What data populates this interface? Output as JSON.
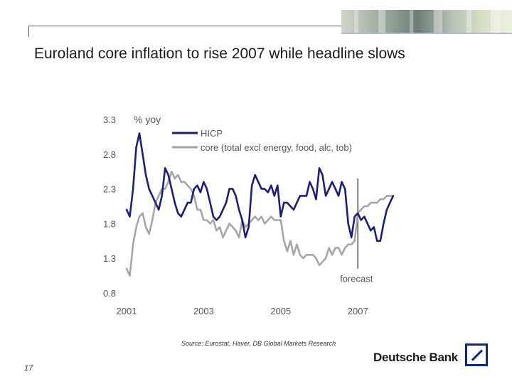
{
  "slide": {
    "title": "Euroland core inflation to rise 2007 while headline slows",
    "source": "Source: Eurostat, Haver, DB Global Markets Research",
    "page_number": "17",
    "brand": "Deutsche Bank",
    "logo": "deutsche-bank-slash-logo"
  },
  "chart_data": {
    "type": "line",
    "title": "",
    "xlabel": "",
    "ylabel": "% yoy",
    "xlim": [
      2001,
      2007.9
    ],
    "ylim": [
      0.8,
      3.3
    ],
    "x_ticks": [
      "2001",
      "2003",
      "2005",
      "2007"
    ],
    "y_ticks": [
      "0.8",
      "1.3",
      "1.8",
      "2.3",
      "2.8",
      "3.3"
    ],
    "grid": false,
    "legend_position": "top-left",
    "annotations": [
      {
        "text": "forecast",
        "x": 2007.0
      }
    ],
    "series": [
      {
        "name": "HICP",
        "color": "#1b1f7a",
        "x": [
          2001.0,
          2001.083,
          2001.167,
          2001.25,
          2001.333,
          2001.417,
          2001.5,
          2001.583,
          2001.667,
          2001.75,
          2001.833,
          2001.917,
          2002.0,
          2002.083,
          2002.167,
          2002.25,
          2002.333,
          2002.417,
          2002.5,
          2002.583,
          2002.667,
          2002.75,
          2002.833,
          2002.917,
          2003.0,
          2003.083,
          2003.167,
          2003.25,
          2003.333,
          2003.417,
          2003.5,
          2003.583,
          2003.667,
          2003.75,
          2003.833,
          2003.917,
          2004.0,
          2004.083,
          2004.167,
          2004.25,
          2004.333,
          2004.417,
          2004.5,
          2004.583,
          2004.667,
          2004.75,
          2004.833,
          2004.917,
          2005.0,
          2005.083,
          2005.167,
          2005.25,
          2005.333,
          2005.417,
          2005.5,
          2005.583,
          2005.667,
          2005.75,
          2005.833,
          2005.917,
          2006.0,
          2006.083,
          2006.167,
          2006.25,
          2006.333,
          2006.417,
          2006.5,
          2006.583,
          2006.667,
          2006.75,
          2006.833,
          2006.917,
          2007.0,
          2007.083,
          2007.167,
          2007.25,
          2007.333,
          2007.417,
          2007.5,
          2007.583,
          2007.667,
          2007.75,
          2007.833,
          2007.917
        ],
        "y": [
          2.0,
          1.9,
          2.3,
          2.9,
          3.1,
          2.8,
          2.5,
          2.3,
          2.2,
          2.1,
          2.0,
          2.2,
          2.6,
          2.5,
          2.3,
          2.1,
          1.95,
          1.9,
          2.0,
          2.1,
          2.1,
          2.3,
          2.35,
          2.25,
          2.4,
          2.3,
          2.1,
          1.9,
          1.85,
          1.9,
          2.0,
          2.1,
          2.3,
          2.3,
          2.2,
          2.0,
          1.85,
          1.6,
          1.75,
          2.35,
          2.5,
          2.4,
          2.3,
          2.3,
          2.25,
          2.35,
          2.2,
          2.35,
          1.9,
          2.1,
          2.1,
          2.05,
          2.0,
          2.1,
          2.2,
          2.2,
          2.2,
          2.4,
          2.3,
          2.15,
          2.6,
          2.5,
          2.2,
          2.3,
          2.4,
          2.3,
          2.2,
          2.4,
          2.3,
          1.8,
          1.6,
          1.9,
          1.95,
          1.85,
          1.9,
          1.8,
          1.7,
          1.75,
          1.55,
          1.55,
          1.8,
          2.0,
          2.1,
          2.2
        ]
      },
      {
        "name": "core (total excl energy, food, alc, tob)",
        "color": "#a6a6a6",
        "x": [
          2001.0,
          2001.083,
          2001.167,
          2001.25,
          2001.333,
          2001.417,
          2001.5,
          2001.583,
          2001.667,
          2001.75,
          2001.833,
          2001.917,
          2002.0,
          2002.083,
          2002.167,
          2002.25,
          2002.333,
          2002.417,
          2002.5,
          2002.583,
          2002.667,
          2002.75,
          2002.833,
          2002.917,
          2003.0,
          2003.083,
          2003.167,
          2003.25,
          2003.333,
          2003.417,
          2003.5,
          2003.583,
          2003.667,
          2003.75,
          2003.833,
          2003.917,
          2004.0,
          2004.083,
          2004.167,
          2004.25,
          2004.333,
          2004.417,
          2004.5,
          2004.583,
          2004.667,
          2004.75,
          2004.833,
          2004.917,
          2005.0,
          2005.083,
          2005.167,
          2005.25,
          2005.333,
          2005.417,
          2005.5,
          2005.583,
          2005.667,
          2005.75,
          2005.833,
          2005.917,
          2006.0,
          2006.083,
          2006.167,
          2006.25,
          2006.333,
          2006.417,
          2006.5,
          2006.583,
          2006.667,
          2006.75,
          2006.833,
          2006.917,
          2007.0,
          2007.083,
          2007.167,
          2007.25,
          2007.333,
          2007.417,
          2007.5,
          2007.583,
          2007.667,
          2007.75,
          2007.833,
          2007.917
        ],
        "y": [
          1.15,
          1.05,
          1.5,
          1.75,
          1.9,
          1.95,
          1.75,
          1.65,
          1.85,
          2.1,
          2.2,
          2.3,
          2.3,
          2.4,
          2.55,
          2.45,
          2.5,
          2.4,
          2.4,
          2.35,
          2.3,
          2.2,
          2.0,
          2.0,
          1.85,
          1.85,
          1.8,
          1.85,
          1.7,
          1.75,
          1.6,
          1.7,
          1.8,
          1.75,
          1.7,
          1.6,
          1.85,
          1.75,
          1.8,
          1.85,
          1.9,
          1.85,
          1.9,
          1.8,
          1.85,
          1.9,
          1.85,
          1.85,
          1.85,
          1.55,
          1.4,
          1.55,
          1.35,
          1.5,
          1.35,
          1.3,
          1.35,
          1.35,
          1.35,
          1.3,
          1.2,
          1.25,
          1.3,
          1.45,
          1.35,
          1.45,
          1.45,
          1.35,
          1.45,
          1.5,
          1.5,
          1.55,
          1.95,
          2.0,
          2.05,
          2.05,
          2.1,
          2.1,
          2.1,
          2.15,
          2.15,
          2.2,
          2.2,
          2.2
        ]
      }
    ]
  }
}
